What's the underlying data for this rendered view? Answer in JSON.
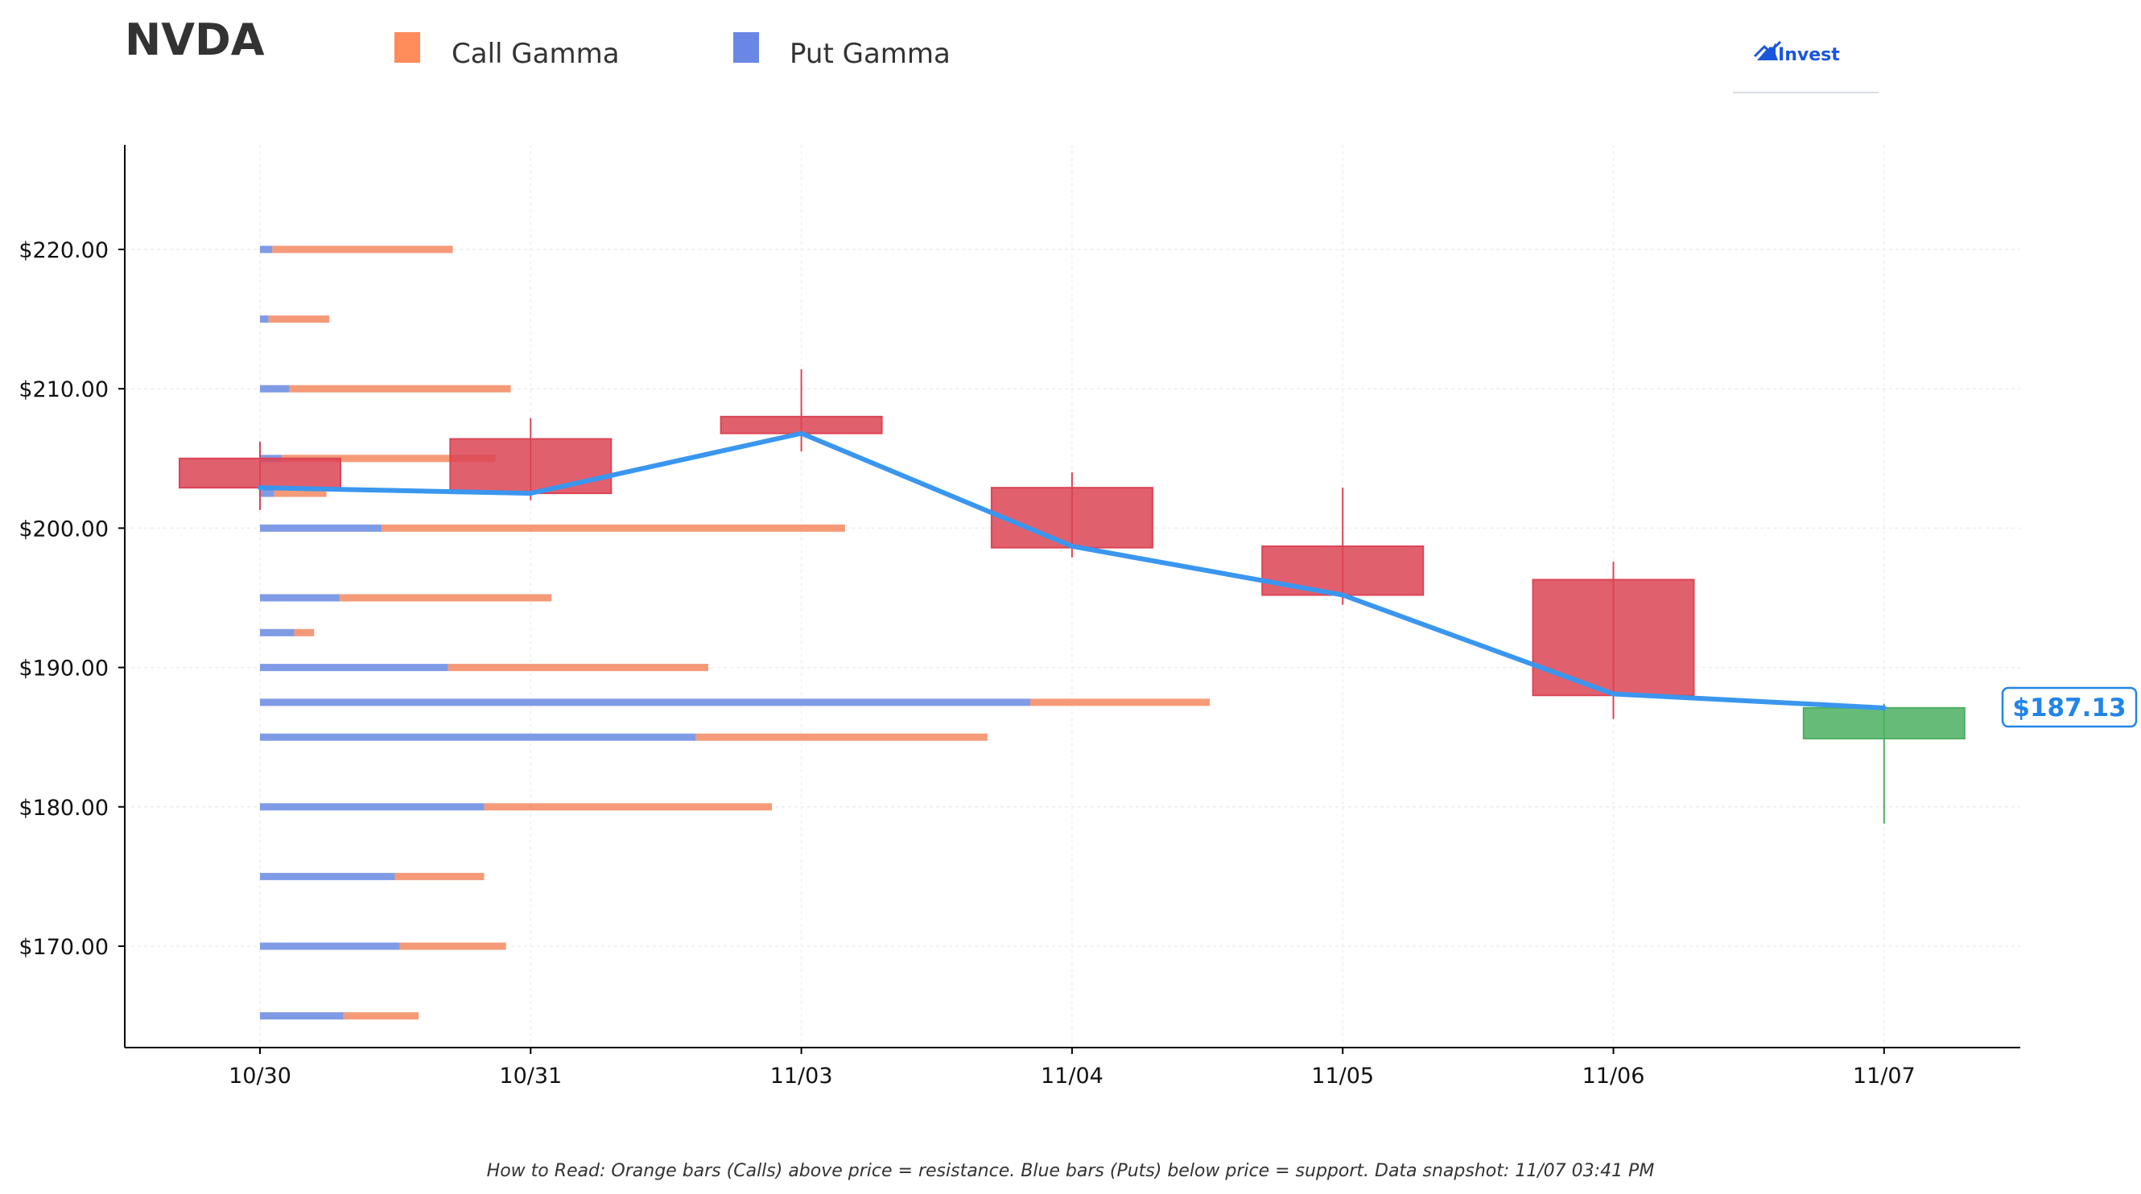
{
  "header": {
    "ticker": "NVDA",
    "logo_text": "AInvest"
  },
  "legend": {
    "items": [
      {
        "label": "Call Gamma",
        "color": "#ff8c5a"
      },
      {
        "label": "Put Gamma",
        "color": "#6a87e6"
      }
    ]
  },
  "footnote": "How to Read: Orange bars (Calls) above price = resistance. Blue bars (Puts) below price = support. Data snapshot: 11/07 03:41 PM",
  "current_price_label": "$187.13",
  "colors": {
    "up": "#4caf60",
    "down": "#dc4455",
    "line": "#3a96ee",
    "call": "#f59a78",
    "put": "#7f9be6"
  },
  "chart_data": {
    "type": "candlestick",
    "categories": [
      "10/30",
      "10/31",
      "11/03",
      "11/04",
      "11/05",
      "11/06",
      "11/07"
    ],
    "ylim": [
      163,
      228
    ],
    "yticks": [
      170,
      180,
      190,
      200,
      210,
      220
    ],
    "ytick_labels": [
      "$170.00",
      "$180.00",
      "$190.00",
      "$200.00",
      "$210.00",
      "$220.00"
    ],
    "grid": true,
    "legend_position": "top",
    "candles": [
      {
        "date": "10/30",
        "open": 205.0,
        "high": 206.2,
        "low": 201.3,
        "close": 202.9
      },
      {
        "date": "10/31",
        "open": 206.4,
        "high": 207.9,
        "low": 202.0,
        "close": 202.5
      },
      {
        "date": "11/03",
        "open": 208.0,
        "high": 211.4,
        "low": 205.5,
        "close": 206.8
      },
      {
        "date": "11/04",
        "open": 202.9,
        "high": 204.0,
        "low": 197.9,
        "close": 198.6
      },
      {
        "date": "11/05",
        "open": 198.7,
        "high": 202.9,
        "low": 194.5,
        "close": 195.2
      },
      {
        "date": "11/06",
        "open": 196.3,
        "high": 197.6,
        "low": 186.3,
        "close": 188.0
      },
      {
        "date": "11/07",
        "open": 184.9,
        "high": 187.4,
        "low": 178.8,
        "close": 187.1
      }
    ],
    "close_line": [
      202.9,
      202.5,
      206.8,
      198.7,
      195.2,
      188.1,
      187.1
    ],
    "gamma_units": "share of max (0-1)",
    "gamma_levels": [
      {
        "strike": 220,
        "put": 0.013,
        "call": 0.19
      },
      {
        "strike": 215,
        "put": 0.009,
        "call": 0.064
      },
      {
        "strike": 210,
        "put": 0.031,
        "call": 0.233
      },
      {
        "strike": 205,
        "put": 0.023,
        "call": 0.225
      },
      {
        "strike": 202.5,
        "put": 0.015,
        "call": 0.055
      },
      {
        "strike": 200,
        "put": 0.128,
        "call": 0.488
      },
      {
        "strike": 195,
        "put": 0.084,
        "call": 0.223
      },
      {
        "strike": 192.5,
        "put": 0.036,
        "call": 0.021
      },
      {
        "strike": 190,
        "put": 0.198,
        "call": 0.274
      },
      {
        "strike": 187.5,
        "put": 0.811,
        "call": 0.189
      },
      {
        "strike": 185,
        "put": 0.459,
        "call": 0.307
      },
      {
        "strike": 180,
        "put": 0.236,
        "call": 0.303
      },
      {
        "strike": 175,
        "put": 0.142,
        "call": 0.094
      },
      {
        "strike": 170,
        "put": 0.147,
        "call": 0.112
      },
      {
        "strike": 165,
        "put": 0.088,
        "call": 0.079
      }
    ]
  }
}
